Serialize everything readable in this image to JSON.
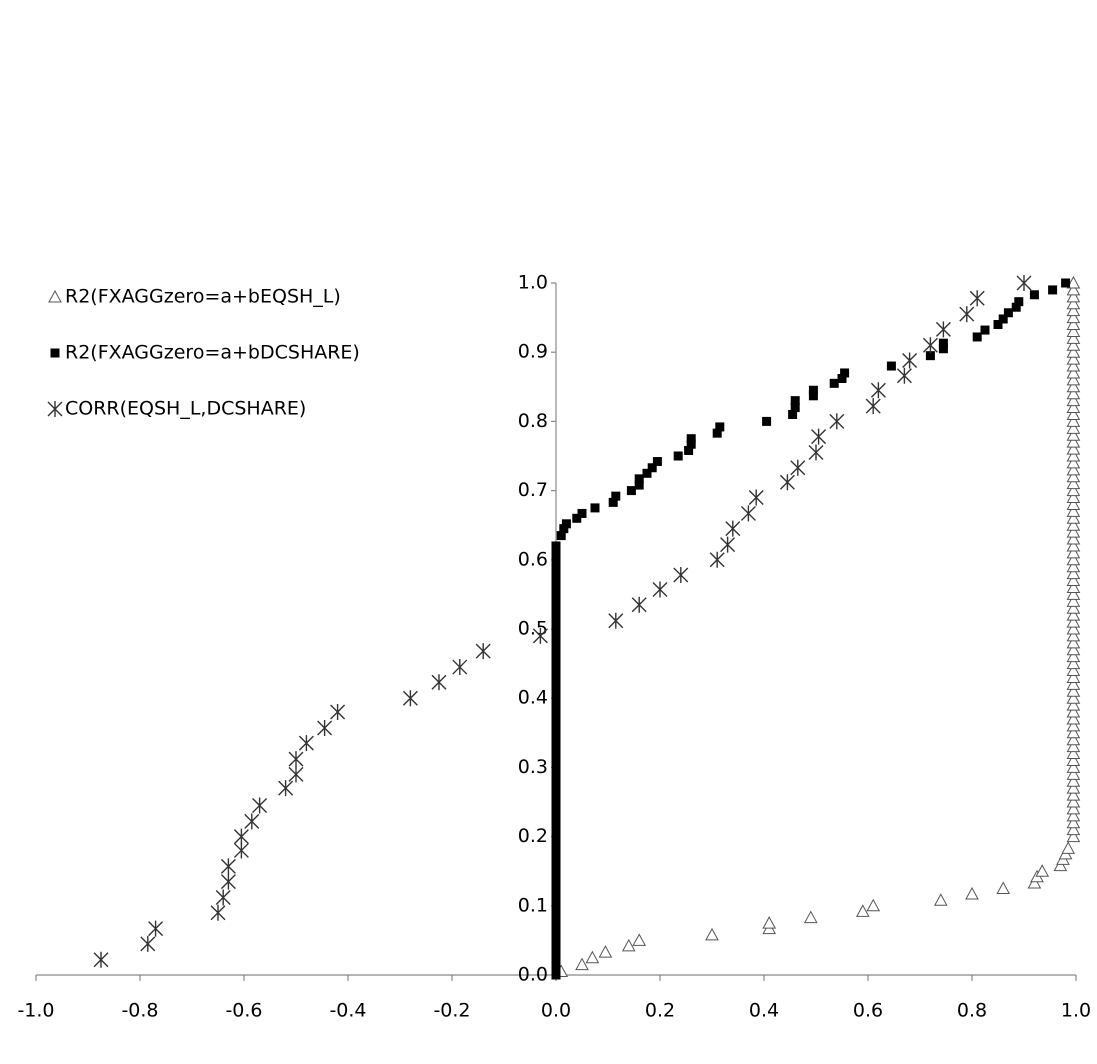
{
  "chart_data": {
    "type": "scatter",
    "xlim": [
      -1.0,
      1.0
    ],
    "ylim": [
      0.0,
      1.0
    ],
    "xticks": [
      {
        "value": -1.0,
        "label": "-1.0"
      },
      {
        "value": -0.8,
        "label": "-0.8"
      },
      {
        "value": -0.6,
        "label": "-0.6"
      },
      {
        "value": -0.4,
        "label": "-0.4"
      },
      {
        "value": -0.2,
        "label": "-0.2"
      },
      {
        "value": 0.0,
        "label": "0.0"
      },
      {
        "value": 0.2,
        "label": "0.2"
      },
      {
        "value": 0.4,
        "label": "0.4"
      },
      {
        "value": 0.6,
        "label": "0.6"
      },
      {
        "value": 0.8,
        "label": "0.8"
      },
      {
        "value": 1.0,
        "label": "1.0"
      }
    ],
    "yticks": [
      {
        "value": 0.0,
        "label": "0.0"
      },
      {
        "value": 0.1,
        "label": "0.1"
      },
      {
        "value": 0.2,
        "label": "0.2"
      },
      {
        "value": 0.3,
        "label": "0.3"
      },
      {
        "value": 0.4,
        "label": "0.4"
      },
      {
        "value": 0.5,
        "label": "0.5"
      },
      {
        "value": 0.6,
        "label": "0.6"
      },
      {
        "value": 0.7,
        "label": "0.7"
      },
      {
        "value": 0.8,
        "label": "0.8"
      },
      {
        "value": 0.9,
        "label": "0.9"
      },
      {
        "value": 1.0,
        "label": "1.0"
      }
    ],
    "grid": false,
    "legend": "upper left",
    "series": [
      {
        "name": "R2(FXAGGzero=a+bEQSH_L)",
        "color": "#555555",
        "marker": "triangle",
        "x": [
          0.01,
          0.05,
          0.07,
          0.095,
          0.14,
          0.16,
          0.3,
          0.41,
          0.41,
          0.49,
          0.59,
          0.61,
          0.74,
          0.8,
          0.86,
          0.92,
          0.925,
          0.935,
          0.97,
          0.975,
          0.98,
          0.985,
          0.995,
          0.995,
          0.995,
          0.995,
          0.995,
          0.995,
          0.995,
          0.995,
          0.995,
          0.995,
          0.995,
          0.995,
          0.995,
          0.995,
          0.995,
          0.995,
          0.995,
          0.995,
          0.995,
          0.995,
          0.995,
          0.995,
          0.995,
          0.995,
          0.995,
          0.995,
          0.995,
          0.995,
          0.995,
          0.995,
          0.995,
          0.995,
          0.995,
          0.995,
          0.995,
          0.995,
          0.995,
          0.995,
          0.995,
          0.995,
          0.995,
          0.995,
          0.995,
          0.995,
          0.995,
          0.995,
          0.995,
          0.995,
          0.995,
          0.995,
          0.995,
          0.995,
          0.995,
          0.995,
          0.995,
          0.995,
          0.995,
          0.995,
          0.995,
          0.995,
          0.995,
          0.995,
          0.995,
          0.995,
          0.995,
          0.995,
          0.995,
          0.995,
          0.995,
          0.995,
          0.995,
          0.995,
          0.995,
          0.995,
          0.995,
          0.995,
          0.995,
          0.995,
          0.995,
          0.995,
          0.995
        ],
        "values": [
          0.005,
          0.015,
          0.025,
          0.033,
          0.042,
          0.05,
          0.058,
          0.067,
          0.075,
          0.083,
          0.092,
          0.1,
          0.108,
          0.117,
          0.125,
          0.133,
          0.142,
          0.15,
          0.158,
          0.167,
          0.175,
          0.183,
          0.2,
          0.21,
          0.22,
          0.23,
          0.24,
          0.25,
          0.26,
          0.27,
          0.28,
          0.29,
          0.3,
          0.31,
          0.32,
          0.33,
          0.34,
          0.35,
          0.36,
          0.37,
          0.38,
          0.39,
          0.4,
          0.41,
          0.42,
          0.43,
          0.44,
          0.45,
          0.46,
          0.47,
          0.48,
          0.49,
          0.5,
          0.51,
          0.52,
          0.53,
          0.54,
          0.55,
          0.56,
          0.57,
          0.58,
          0.59,
          0.6,
          0.61,
          0.62,
          0.63,
          0.64,
          0.65,
          0.66,
          0.67,
          0.68,
          0.69,
          0.7,
          0.71,
          0.72,
          0.73,
          0.74,
          0.75,
          0.76,
          0.77,
          0.78,
          0.79,
          0.8,
          0.81,
          0.82,
          0.83,
          0.84,
          0.85,
          0.86,
          0.87,
          0.88,
          0.89,
          0.9,
          0.91,
          0.92,
          0.93,
          0.94,
          0.95,
          0.96,
          0.97,
          0.98,
          0.99,
          1.0
        ]
      },
      {
        "name": "R2(FXAGGzero=a+bDCSHARE)",
        "color": "#000000",
        "marker": "square",
        "x": [
          0,
          0,
          0,
          0,
          0,
          0,
          0,
          0,
          0,
          0,
          0,
          0,
          0,
          0,
          0,
          0,
          0,
          0,
          0,
          0,
          0,
          0,
          0,
          0,
          0,
          0,
          0,
          0,
          0,
          0,
          0,
          0,
          0,
          0,
          0,
          0,
          0,
          0,
          0,
          0,
          0,
          0,
          0,
          0,
          0,
          0,
          0,
          0,
          0,
          0,
          0,
          0,
          0,
          0,
          0,
          0,
          0,
          0,
          0,
          0,
          0,
          0,
          0,
          0.01,
          0.015,
          0.02,
          0.04,
          0.05,
          0.075,
          0.11,
          0.115,
          0.145,
          0.16,
          0.16,
          0.175,
          0.185,
          0.195,
          0.235,
          0.255,
          0.26,
          0.26,
          0.31,
          0.315,
          0.405,
          0.455,
          0.46,
          0.46,
          0.495,
          0.495,
          0.535,
          0.55,
          0.555,
          0.645,
          0.72,
          0.745,
          0.745,
          0.81,
          0.825,
          0.85,
          0.86,
          0.87,
          0.885,
          0.89,
          0.92,
          0.955,
          0.98
        ],
        "values": [
          0.0,
          0.01,
          0.02,
          0.03,
          0.04,
          0.05,
          0.06,
          0.07,
          0.08,
          0.09,
          0.1,
          0.11,
          0.12,
          0.13,
          0.14,
          0.15,
          0.16,
          0.17,
          0.18,
          0.19,
          0.2,
          0.21,
          0.22,
          0.23,
          0.24,
          0.25,
          0.26,
          0.27,
          0.28,
          0.29,
          0.3,
          0.31,
          0.32,
          0.33,
          0.34,
          0.35,
          0.36,
          0.37,
          0.38,
          0.39,
          0.4,
          0.41,
          0.42,
          0.43,
          0.44,
          0.45,
          0.46,
          0.47,
          0.48,
          0.49,
          0.5,
          0.51,
          0.52,
          0.53,
          0.54,
          0.55,
          0.56,
          0.57,
          0.58,
          0.59,
          0.6,
          0.61,
          0.62,
          0.635,
          0.645,
          0.652,
          0.66,
          0.667,
          0.675,
          0.683,
          0.692,
          0.7,
          0.708,
          0.717,
          0.725,
          0.733,
          0.742,
          0.75,
          0.758,
          0.767,
          0.775,
          0.783,
          0.792,
          0.8,
          0.81,
          0.82,
          0.83,
          0.837,
          0.845,
          0.855,
          0.862,
          0.87,
          0.88,
          0.895,
          0.905,
          0.913,
          0.922,
          0.932,
          0.94,
          0.948,
          0.957,
          0.965,
          0.973,
          0.983,
          0.99,
          1.0
        ]
      },
      {
        "name": "CORR(EQSH_L,DCSHARE)",
        "color": "#333333",
        "marker": "asterisk",
        "x": [
          -0.875,
          -0.785,
          -0.77,
          -0.65,
          -0.64,
          -0.63,
          -0.63,
          -0.605,
          -0.605,
          -0.585,
          -0.57,
          -0.52,
          -0.5,
          -0.5,
          -0.48,
          -0.445,
          -0.42,
          -0.28,
          -0.225,
          -0.185,
          -0.14,
          -0.03,
          0.115,
          0.16,
          0.2,
          0.24,
          0.31,
          0.33,
          0.34,
          0.37,
          0.385,
          0.445,
          0.465,
          0.5,
          0.505,
          0.54,
          0.61,
          0.62,
          0.67,
          0.68,
          0.72,
          0.745,
          0.79,
          0.81,
          0.9
        ],
        "values": [
          0.022,
          0.045,
          0.067,
          0.09,
          0.112,
          0.135,
          0.157,
          0.18,
          0.2,
          0.222,
          0.245,
          0.27,
          0.29,
          0.312,
          0.335,
          0.357,
          0.38,
          0.4,
          0.423,
          0.445,
          0.468,
          0.49,
          0.512,
          0.535,
          0.557,
          0.578,
          0.6,
          0.622,
          0.645,
          0.667,
          0.69,
          0.712,
          0.733,
          0.755,
          0.778,
          0.8,
          0.822,
          0.845,
          0.866,
          0.888,
          0.91,
          0.933,
          0.955,
          0.978,
          1.0
        ]
      }
    ]
  }
}
